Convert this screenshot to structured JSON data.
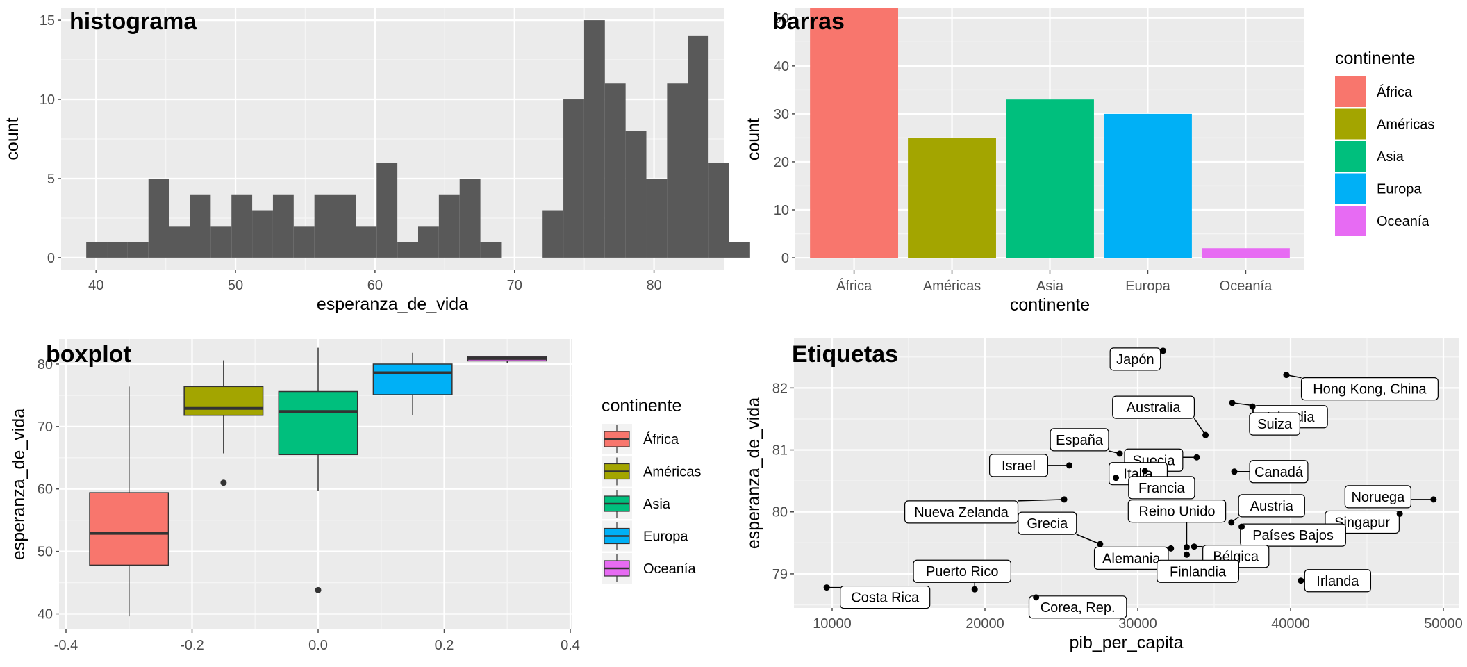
{
  "chart_data": [
    {
      "type": "histogram",
      "title": "histograma",
      "xlabel": "esperanza_de_vida",
      "ylabel": "count",
      "xlim": [
        37.5,
        85
      ],
      "ylim": [
        -0.75,
        15.75
      ],
      "xticks": [
        40,
        50,
        60,
        70,
        80
      ],
      "yticks": [
        0,
        5,
        10,
        15
      ],
      "bin_start": 39.3,
      "bin_width": 1.487,
      "counts": [
        1,
        1,
        1,
        5,
        2,
        4,
        2,
        4,
        3,
        4,
        2,
        4,
        4,
        2,
        6,
        1,
        2,
        4,
        5,
        1,
        0,
        0,
        3,
        10,
        15,
        11,
        8,
        5,
        11,
        14,
        6,
        1
      ],
      "fill": "#595959"
    },
    {
      "type": "bar",
      "title": "barras",
      "xlabel": "continente",
      "ylabel": "count",
      "categories": [
        "África",
        "Américas",
        "Asia",
        "Europa",
        "Oceanía"
      ],
      "values": [
        52,
        25,
        33,
        30,
        2
      ],
      "colors": [
        "#F8766D",
        "#A3A500",
        "#00BF7D",
        "#00B0F6",
        "#E76BF3"
      ],
      "ylim": [
        -2.6,
        52
      ],
      "yticks": [
        0,
        10,
        20,
        30,
        40,
        50
      ],
      "legend": {
        "title": "continente",
        "position": "right",
        "labels": [
          "África",
          "Américas",
          "Asia",
          "Europa",
          "Oceanía"
        ]
      }
    },
    {
      "type": "boxplot",
      "title": "boxplot",
      "xlabel": "",
      "ylabel": "esperanza_de_vida",
      "xlim": [
        -0.4,
        0.4
      ],
      "ylim": [
        37.5,
        84
      ],
      "xticks": [
        "-0.4",
        "-0.2",
        "0.0",
        "0.2",
        "0.4"
      ],
      "yticks": [
        40,
        50,
        60,
        70,
        80
      ],
      "boxes": [
        {
          "name": "África",
          "center": -0.3,
          "q1": 47.8,
          "median": 52.9,
          "q3": 59.4,
          "whisker_low": 39.6,
          "whisker_high": 76.4,
          "outliers": []
        },
        {
          "name": "Américas",
          "center": -0.15,
          "q1": 71.8,
          "median": 72.9,
          "q3": 76.4,
          "whisker_low": 65.7,
          "whisker_high": 80.6,
          "outliers": [
            61.0
          ]
        },
        {
          "name": "Asia",
          "center": 0.0,
          "q1": 65.5,
          "median": 72.4,
          "q3": 75.6,
          "whisker_low": 59.7,
          "whisker_high": 82.6,
          "outliers": [
            43.8
          ]
        },
        {
          "name": "Europa",
          "center": 0.15,
          "q1": 75.1,
          "median": 78.6,
          "q3": 80.0,
          "whisker_low": 71.8,
          "whisker_high": 81.8,
          "outliers": []
        },
        {
          "name": "Oceanía",
          "center": 0.3,
          "q1": 80.5,
          "median": 80.9,
          "q3": 81.2,
          "whisker_low": 80.2,
          "whisker_high": 81.2,
          "outliers": []
        }
      ],
      "legend": {
        "title": "continente",
        "position": "right",
        "labels": [
          "África",
          "Américas",
          "Asia",
          "Europa",
          "Oceanía"
        ]
      }
    },
    {
      "type": "scatter",
      "title": "Etiquetas",
      "xlabel": "pib_per_capita",
      "ylabel": "esperanza_de_vida",
      "xlim": [
        7500,
        51000
      ],
      "ylim": [
        78.45,
        82.8
      ],
      "xticks": [
        10000,
        20000,
        30000,
        40000,
        50000
      ],
      "yticks": [
        79,
        80,
        81,
        82
      ],
      "points": [
        {
          "label": "Japón",
          "x": 31656,
          "y": 82.6
        },
        {
          "label": "Islandia",
          "x": 36181,
          "y": 81.76
        },
        {
          "label": "Hong Kong, China",
          "x": 39725,
          "y": 82.21
        },
        {
          "label": "Australia",
          "x": 34435,
          "y": 81.24
        },
        {
          "label": "Suiza",
          "x": 37506,
          "y": 81.7
        },
        {
          "label": "España",
          "x": 28821,
          "y": 80.94
        },
        {
          "label": "Suecia",
          "x": 33860,
          "y": 80.88
        },
        {
          "label": "Canadá",
          "x": 36319,
          "y": 80.65
        },
        {
          "label": "Israel",
          "x": 25523,
          "y": 80.75
        },
        {
          "label": "Italia",
          "x": 28570,
          "y": 80.55
        },
        {
          "label": "Francia",
          "x": 30470,
          "y": 80.66
        },
        {
          "label": "Nueva Zelanda",
          "x": 25185,
          "y": 80.2
        },
        {
          "label": "Noruega",
          "x": 49357,
          "y": 80.2
        },
        {
          "label": "Austria",
          "x": 36126,
          "y": 79.83
        },
        {
          "label": "Singapur",
          "x": 47143,
          "y": 79.97
        },
        {
          "label": "Grecia",
          "x": 27538,
          "y": 79.48
        },
        {
          "label": "Reino Unido",
          "x": 33203,
          "y": 79.43
        },
        {
          "label": "Países Bajos",
          "x": 36798,
          "y": 79.76
        },
        {
          "label": "Alemania",
          "x": 32170,
          "y": 79.41
        },
        {
          "label": "Bélgica",
          "x": 33692,
          "y": 79.44
        },
        {
          "label": "Finlandia",
          "x": 33207,
          "y": 79.31
        },
        {
          "label": "Puerto Rico",
          "x": 19328,
          "y": 78.75
        },
        {
          "label": "Costa Rica",
          "x": 9645,
          "y": 78.78
        },
        {
          "label": "Corea, Rep.",
          "x": 23348,
          "y": 78.62
        },
        {
          "label": "Irlanda",
          "x": 40676,
          "y": 78.89
        }
      ]
    }
  ]
}
